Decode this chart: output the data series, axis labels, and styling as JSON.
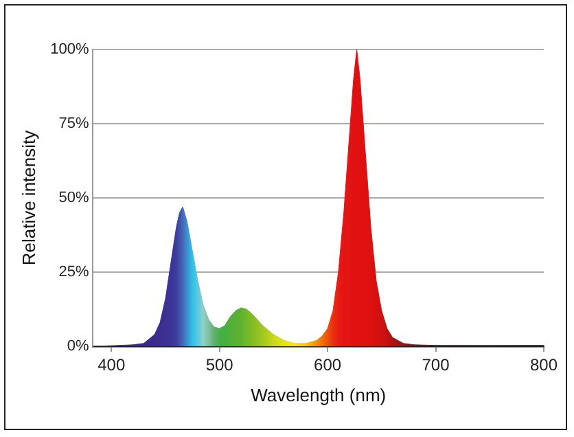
{
  "chart_data": {
    "type": "area",
    "xlabel": "Wavelength (nm)",
    "ylabel": "Relative intensity",
    "xlim": [
      383,
      800
    ],
    "xticks": [
      400,
      500,
      600,
      700,
      800
    ],
    "ylim": [
      0,
      100
    ],
    "yticks": [
      {
        "value": 0,
        "label": "0%"
      },
      {
        "value": 25,
        "label": "25%"
      },
      {
        "value": 50,
        "label": "50%"
      },
      {
        "value": 75,
        "label": "75%"
      },
      {
        "value": 100,
        "label": "100%"
      }
    ],
    "grid": "y",
    "legend": false,
    "marker": "none",
    "series": [
      {
        "x": [
          383,
          400,
          420,
          430,
          440,
          445,
          450,
          455,
          460,
          463,
          466,
          470,
          475,
          480,
          485,
          490,
          495,
          500,
          505,
          510,
          515,
          520,
          525,
          530,
          540,
          550,
          560,
          570,
          580,
          590,
          595,
          600,
          605,
          610,
          615,
          620,
          624,
          627,
          630,
          635,
          640,
          645,
          650,
          655,
          660,
          670,
          680,
          700,
          750,
          800
        ],
        "values": [
          0,
          0.2,
          0.5,
          1,
          4,
          8,
          16,
          28,
          40,
          45,
          47,
          42,
          32,
          22,
          14,
          9,
          6.5,
          6,
          7,
          10,
          12,
          13,
          12.5,
          11,
          7,
          4,
          2,
          1,
          1,
          2,
          3.5,
          6,
          12,
          25,
          45,
          70,
          90,
          100,
          90,
          65,
          40,
          22,
          12,
          6,
          3,
          1,
          0.5,
          0.3,
          0.3,
          0.3
        ],
        "colors": [
          "#3a2a80",
          "#3a2a80",
          "#3a2a80",
          "#3a2a88",
          "#3b2c8c",
          "#3b2e90",
          "#3c3094",
          "#3c3498",
          "#3d3c9e",
          "#4050a8",
          "#4468b8",
          "#3a90d0",
          "#30c0e8",
          "#5cc8e0",
          "#90d0c8",
          "#80c0a0",
          "#60b070",
          "#48b048",
          "#44b040",
          "#50b038",
          "#58b034",
          "#60b030",
          "#70b828",
          "#80bc24",
          "#a0c820",
          "#c8d818",
          "#e8e410",
          "#f8e800",
          "#f8c800",
          "#f49000",
          "#f07000",
          "#ee5010",
          "#ea3010",
          "#e61c14",
          "#e41414",
          "#e21414",
          "#e01010",
          "#e01010",
          "#e01010",
          "#e01010",
          "#de1010",
          "#d81010",
          "#d01010",
          "#c01010",
          "#b01010",
          "#901818",
          "#602020",
          "#402020",
          "#303030",
          "#202020"
        ]
      }
    ]
  }
}
